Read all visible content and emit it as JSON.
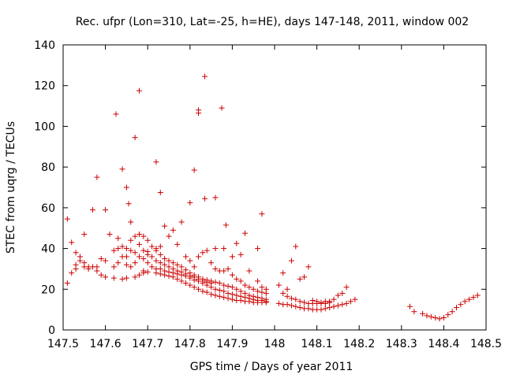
{
  "chart_data": {
    "type": "scatter",
    "title": "Rec. ufpr (Lon=310, Lat=-25, h=HE), days 147-148, 2011, window 002",
    "xlabel": "GPS time / Days of year 2011",
    "ylabel": "STEC from uqrg / TECUs",
    "xlim": [
      147.5,
      148.5
    ],
    "ylim": [
      0,
      140
    ],
    "xticks": [
      147.5,
      147.6,
      147.7,
      147.8,
      147.9,
      148.0,
      148.1,
      148.2,
      148.3,
      148.4,
      148.5
    ],
    "xtick_labels": [
      "147.5",
      "147.6",
      "147.7",
      "147.8",
      "147.9",
      "148",
      "148.1",
      "148.2",
      "148.3",
      "148.4",
      "148.5"
    ],
    "yticks": [
      0,
      20,
      40,
      60,
      80,
      100,
      120,
      140
    ],
    "ytick_labels": [
      "0",
      "20",
      "40",
      "60",
      "80",
      "100",
      "120",
      "140"
    ],
    "grid": false,
    "marker": "+",
    "color": "#cc0000",
    "series": [
      {
        "points": [
          [
            147.51,
            54.5
          ],
          [
            147.52,
            43
          ],
          [
            147.53,
            38
          ],
          [
            147.54,
            34
          ],
          [
            147.55,
            47
          ],
          [
            147.57,
            59
          ],
          [
            147.58,
            75
          ],
          [
            147.6,
            59
          ],
          [
            147.61,
            47
          ],
          [
            147.625,
            106
          ],
          [
            147.63,
            45
          ],
          [
            147.64,
            79
          ],
          [
            147.65,
            70
          ],
          [
            147.655,
            62
          ],
          [
            147.67,
            94.5
          ],
          [
            147.68,
            117.5
          ],
          [
            147.72,
            82.5
          ],
          [
            147.73,
            67.5
          ],
          [
            147.8,
            62.5
          ],
          [
            147.81,
            78.5
          ],
          [
            147.82,
            106.5
          ],
          [
            147.82,
            108
          ],
          [
            147.835,
            124.5
          ],
          [
            147.835,
            64.5
          ],
          [
            147.86,
            65
          ],
          [
            147.875,
            109
          ],
          [
            147.885,
            51.5
          ],
          [
            147.97,
            57
          ],
          [
            147.51,
            23
          ],
          [
            147.52,
            28
          ],
          [
            147.53,
            30
          ],
          [
            147.55,
            31
          ],
          [
            147.56,
            30
          ],
          [
            147.57,
            31
          ],
          [
            147.58,
            29
          ],
          [
            147.59,
            27
          ],
          [
            147.6,
            26
          ],
          [
            147.62,
            25.5
          ],
          [
            147.64,
            25
          ],
          [
            147.65,
            25.5
          ],
          [
            147.67,
            26
          ],
          [
            147.68,
            27
          ],
          [
            147.69,
            28
          ],
          [
            147.7,
            28.5
          ],
          [
            147.72,
            28
          ],
          [
            147.73,
            27.5
          ],
          [
            147.74,
            27
          ],
          [
            147.75,
            26.5
          ],
          [
            147.76,
            26
          ],
          [
            147.77,
            25
          ],
          [
            147.78,
            24
          ],
          [
            147.79,
            23
          ],
          [
            147.8,
            22
          ],
          [
            147.81,
            21
          ],
          [
            147.82,
            20
          ],
          [
            147.83,
            19
          ],
          [
            147.84,
            18.5
          ],
          [
            147.85,
            17.5
          ],
          [
            147.86,
            17
          ],
          [
            147.87,
            16.5
          ],
          [
            147.88,
            16
          ],
          [
            147.89,
            15.5
          ],
          [
            147.9,
            15
          ],
          [
            147.91,
            14.5
          ],
          [
            147.92,
            14.5
          ],
          [
            147.93,
            14
          ],
          [
            147.94,
            14
          ],
          [
            147.95,
            13.5
          ],
          [
            147.96,
            13.5
          ],
          [
            147.97,
            13.5
          ],
          [
            147.98,
            13.5
          ],
          [
            147.53,
            32
          ],
          [
            147.54,
            36
          ],
          [
            147.55,
            33
          ],
          [
            147.56,
            31
          ],
          [
            147.58,
            31
          ],
          [
            147.59,
            35
          ],
          [
            147.6,
            34
          ],
          [
            147.62,
            39
          ],
          [
            147.63,
            40
          ],
          [
            147.64,
            41
          ],
          [
            147.65,
            40
          ],
          [
            147.66,
            39
          ],
          [
            147.67,
            38
          ],
          [
            147.68,
            36
          ],
          [
            147.69,
            35
          ],
          [
            147.7,
            33
          ],
          [
            147.71,
            31
          ],
          [
            147.72,
            30
          ],
          [
            147.73,
            30
          ],
          [
            147.74,
            29
          ],
          [
            147.75,
            28.5
          ],
          [
            147.76,
            28
          ],
          [
            147.77,
            27.5
          ],
          [
            147.78,
            27
          ],
          [
            147.79,
            26.5
          ],
          [
            147.8,
            25.5
          ],
          [
            147.81,
            24.5
          ],
          [
            147.82,
            24
          ],
          [
            147.83,
            23
          ],
          [
            147.84,
            22
          ],
          [
            147.85,
            21
          ],
          [
            147.86,
            20
          ],
          [
            147.87,
            19.5
          ],
          [
            147.88,
            19
          ],
          [
            147.89,
            18
          ],
          [
            147.9,
            17.5
          ],
          [
            147.91,
            17
          ],
          [
            147.92,
            16.5
          ],
          [
            147.93,
            16
          ],
          [
            147.94,
            15.5
          ],
          [
            147.95,
            15
          ],
          [
            147.96,
            14.5
          ],
          [
            147.97,
            14.5
          ],
          [
            147.98,
            14
          ],
          [
            147.62,
            31
          ],
          [
            147.63,
            33
          ],
          [
            147.65,
            36
          ],
          [
            147.66,
            44
          ],
          [
            147.67,
            46
          ],
          [
            147.68,
            47
          ],
          [
            147.69,
            46
          ],
          [
            147.7,
            44
          ],
          [
            147.71,
            41
          ],
          [
            147.72,
            39
          ],
          [
            147.73,
            37
          ],
          [
            147.74,
            35
          ],
          [
            147.75,
            34
          ],
          [
            147.76,
            33
          ],
          [
            147.77,
            32
          ],
          [
            147.78,
            31
          ],
          [
            147.79,
            29.5
          ],
          [
            147.8,
            28
          ],
          [
            147.81,
            27
          ],
          [
            147.82,
            26
          ],
          [
            147.83,
            25
          ],
          [
            147.84,
            24.5
          ],
          [
            147.85,
            24
          ],
          [
            147.86,
            23.5
          ],
          [
            147.87,
            23
          ],
          [
            147.88,
            22
          ],
          [
            147.89,
            21.5
          ],
          [
            147.9,
            21
          ],
          [
            147.91,
            20
          ],
          [
            147.92,
            19
          ],
          [
            147.93,
            18
          ],
          [
            147.94,
            17
          ],
          [
            147.95,
            16.5
          ],
          [
            147.96,
            16
          ],
          [
            147.97,
            15.5
          ],
          [
            147.98,
            15
          ],
          [
            147.64,
            36
          ],
          [
            147.65,
            32
          ],
          [
            147.66,
            31
          ],
          [
            147.67,
            33
          ],
          [
            147.68,
            42
          ],
          [
            147.69,
            39
          ],
          [
            147.7,
            37
          ],
          [
            147.71,
            36
          ],
          [
            147.72,
            34
          ],
          [
            147.73,
            33
          ],
          [
            147.74,
            32
          ],
          [
            147.75,
            31
          ],
          [
            147.76,
            30
          ],
          [
            147.77,
            29
          ],
          [
            147.78,
            28.5
          ],
          [
            147.79,
            27.5
          ],
          [
            147.8,
            26.5
          ],
          [
            147.81,
            26
          ],
          [
            147.82,
            25
          ],
          [
            147.83,
            24
          ],
          [
            147.84,
            23.5
          ],
          [
            147.85,
            23
          ],
          [
            147.66,
            53
          ],
          [
            147.69,
            29
          ],
          [
            147.7,
            38.5
          ],
          [
            147.72,
            40
          ],
          [
            147.73,
            41
          ],
          [
            147.74,
            51
          ],
          [
            147.75,
            46
          ],
          [
            147.76,
            49
          ],
          [
            147.77,
            42
          ],
          [
            147.78,
            53
          ],
          [
            147.79,
            36
          ],
          [
            147.8,
            34
          ],
          [
            147.81,
            31
          ],
          [
            147.82,
            36
          ],
          [
            147.83,
            38
          ],
          [
            147.84,
            39
          ],
          [
            147.85,
            33
          ],
          [
            147.86,
            30
          ],
          [
            147.87,
            29
          ],
          [
            147.88,
            29
          ],
          [
            147.89,
            30
          ],
          [
            147.9,
            27
          ],
          [
            147.91,
            25
          ],
          [
            147.92,
            24
          ],
          [
            147.93,
            22
          ],
          [
            147.94,
            21
          ],
          [
            147.95,
            20
          ],
          [
            147.96,
            19
          ],
          [
            147.97,
            18.5
          ],
          [
            147.98,
            18
          ],
          [
            147.86,
            40
          ],
          [
            147.88,
            40
          ],
          [
            147.9,
            36
          ],
          [
            147.91,
            42.5
          ],
          [
            147.92,
            37
          ],
          [
            147.93,
            47.5
          ],
          [
            147.94,
            29
          ],
          [
            147.96,
            40
          ],
          [
            147.96,
            24
          ],
          [
            147.97,
            21
          ],
          [
            147.98,
            20
          ],
          [
            148.01,
            22
          ],
          [
            148.02,
            18
          ],
          [
            148.03,
            16.5
          ],
          [
            148.04,
            15.5
          ],
          [
            148.05,
            15
          ],
          [
            148.06,
            14
          ],
          [
            148.07,
            13.5
          ],
          [
            148.08,
            13
          ],
          [
            148.09,
            13
          ],
          [
            148.1,
            13
          ],
          [
            148.11,
            13
          ],
          [
            148.12,
            13
          ],
          [
            148.13,
            13.5
          ],
          [
            148.01,
            13
          ],
          [
            148.02,
            12.5
          ],
          [
            148.03,
            12.5
          ],
          [
            148.04,
            12
          ],
          [
            148.05,
            11.5
          ],
          [
            148.06,
            11
          ],
          [
            148.07,
            10.5
          ],
          [
            148.08,
            10.5
          ],
          [
            148.09,
            10
          ],
          [
            148.1,
            10
          ],
          [
            148.11,
            10
          ],
          [
            148.12,
            10.5
          ],
          [
            148.13,
            11
          ],
          [
            148.14,
            11.5
          ],
          [
            148.15,
            12
          ],
          [
            148.16,
            12.5
          ],
          [
            148.17,
            13
          ],
          [
            148.18,
            14
          ],
          [
            148.19,
            15
          ],
          [
            148.02,
            28
          ],
          [
            148.03,
            20
          ],
          [
            148.04,
            34
          ],
          [
            148.05,
            41
          ],
          [
            148.06,
            25
          ],
          [
            148.07,
            26
          ],
          [
            148.08,
            31
          ],
          [
            148.09,
            14.5
          ],
          [
            148.1,
            14
          ],
          [
            148.11,
            13.5
          ],
          [
            148.12,
            14
          ],
          [
            148.13,
            14
          ],
          [
            148.14,
            15
          ],
          [
            148.15,
            17
          ],
          [
            148.16,
            18
          ],
          [
            148.17,
            21
          ],
          [
            148.32,
            11.5
          ],
          [
            148.33,
            9
          ],
          [
            148.35,
            8
          ],
          [
            148.36,
            7
          ],
          [
            148.37,
            6.5
          ],
          [
            148.38,
            6
          ],
          [
            148.39,
            5.5
          ],
          [
            148.4,
            6
          ],
          [
            148.41,
            7.5
          ],
          [
            148.42,
            9
          ],
          [
            148.43,
            11
          ],
          [
            148.44,
            12.5
          ],
          [
            148.45,
            14
          ],
          [
            148.46,
            15
          ],
          [
            148.47,
            16
          ],
          [
            148.48,
            17
          ]
        ]
      }
    ]
  }
}
